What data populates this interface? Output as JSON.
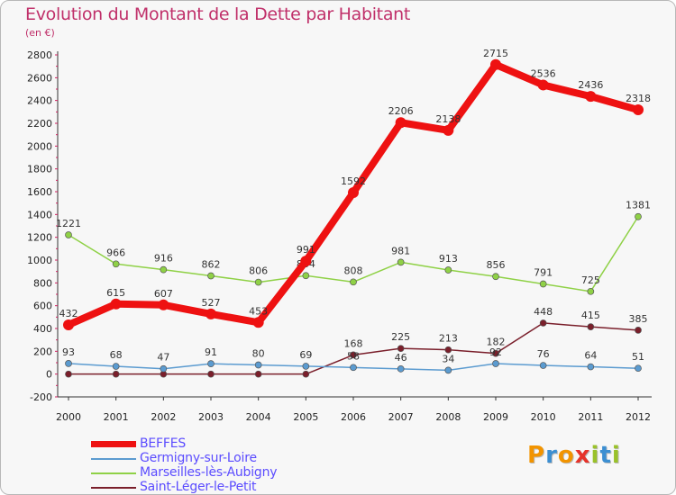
{
  "header": {
    "title": "Evolution du Montant de la Dette par Habitant",
    "unit": "(en €)"
  },
  "brand": {
    "letters": [
      "P",
      "r",
      "o",
      "x",
      "i",
      "t",
      "i"
    ],
    "colors": [
      "#f29400",
      "#3c8fd2",
      "#f29400",
      "#e6332a",
      "#9ac22a",
      "#3c8fd2",
      "#9ac22a"
    ]
  },
  "chart_data": {
    "type": "line",
    "x": [
      "2000",
      "2001",
      "2002",
      "2003",
      "2004",
      "2005",
      "2006",
      "2007",
      "2008",
      "2009",
      "2010",
      "2011",
      "2012"
    ],
    "ylim": [
      -200,
      2800
    ],
    "yticks": [
      "-200",
      "0",
      "200",
      "400",
      "600",
      "800",
      "1000",
      "1200",
      "1400",
      "1600",
      "1800",
      "2000",
      "2200",
      "2400",
      "2600",
      "2800"
    ],
    "grid": false,
    "legend_position": "bottom",
    "series": [
      {
        "name": "Saint-Léger-le-Petit",
        "color": "#7a1f2b",
        "thick": false,
        "values": [
          0,
          0,
          0,
          0,
          0,
          0,
          168,
          225,
          213,
          182,
          448,
          415,
          385
        ],
        "labels": [
          "",
          "",
          "",
          "",
          "",
          "",
          "168",
          "225",
          "213",
          "182",
          "448",
          "415",
          "385"
        ]
      },
      {
        "name": "Germigny-sur-Loire",
        "color": "#5b9bd0",
        "thick": false,
        "values": [
          93,
          68,
          47,
          91,
          80,
          69,
          58,
          46,
          34,
          92,
          76,
          64,
          51
        ],
        "labels": [
          "93",
          "68",
          "47",
          "91",
          "80",
          "69",
          "58",
          "46",
          "34",
          "92",
          "76",
          "64",
          "51"
        ]
      },
      {
        "name": "Marseilles-lès-Aubigny",
        "color": "#8fd146",
        "thick": false,
        "values": [
          1221,
          966,
          916,
          862,
          806,
          864,
          808,
          981,
          913,
          856,
          791,
          725,
          1381
        ],
        "labels": [
          "1221",
          "966",
          "916",
          "862",
          "806",
          "864",
          "808",
          "981",
          "913",
          "856",
          "791",
          "725",
          "1381"
        ]
      },
      {
        "name": "BEFFES",
        "color": "#ee1111",
        "thick": true,
        "values": [
          432,
          615,
          607,
          527,
          453,
          991,
          1592,
          2206,
          2138,
          2715,
          2536,
          2436,
          2318
        ],
        "labels": [
          "432",
          "615",
          "607",
          "527",
          "453",
          "991",
          "1592",
          "2206",
          "2138",
          "2715",
          "2536",
          "2436",
          "2318"
        ]
      }
    ],
    "legend_order": [
      "BEFFES",
      "Germigny-sur-Loire",
      "Marseilles-lès-Aubigny",
      "Saint-Léger-le-Petit"
    ]
  }
}
